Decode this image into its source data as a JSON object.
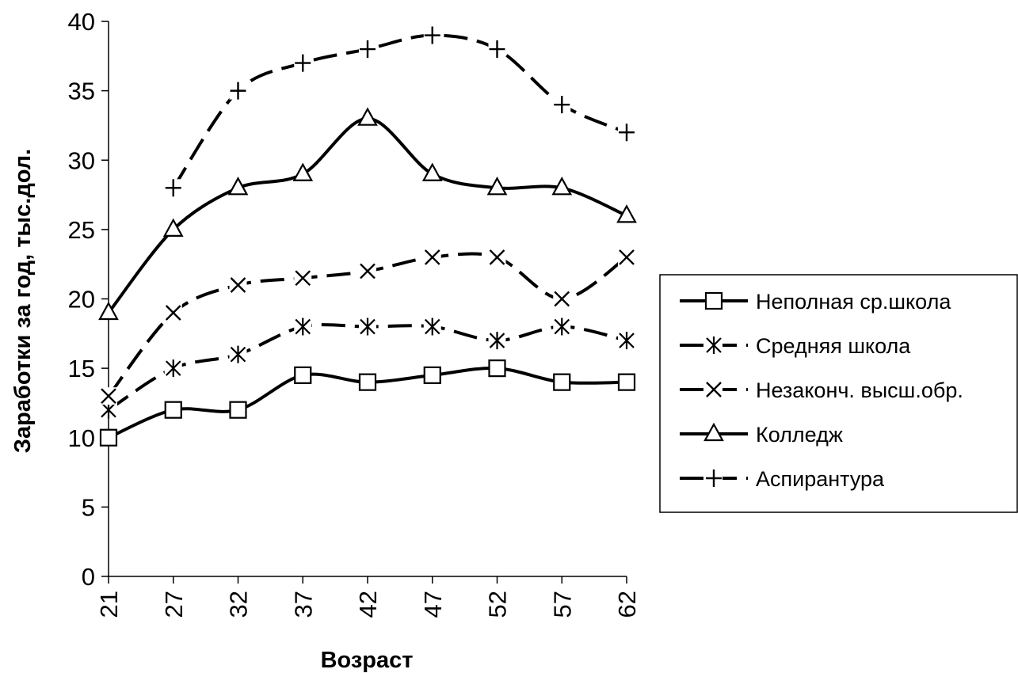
{
  "chart_data": {
    "type": "line",
    "title": "",
    "xlabel": "Возраст",
    "ylabel": "Заработки за год, тыс.дол.",
    "categories": [
      "21",
      "27",
      "32",
      "37",
      "42",
      "47",
      "52",
      "57",
      "62"
    ],
    "ylim": [
      0,
      40
    ],
    "yticks": [
      0,
      5,
      10,
      15,
      20,
      25,
      30,
      35,
      40
    ],
    "grid": false,
    "legend_position": "right",
    "series": [
      {
        "name": "Неполная ср.школа",
        "marker": "square",
        "dashed": false,
        "values": [
          10,
          12,
          12,
          14.5,
          14,
          14.5,
          15,
          14,
          14
        ]
      },
      {
        "name": "Средняя школа",
        "marker": "asterisk",
        "dashed": true,
        "values": [
          12,
          15,
          16,
          18,
          18,
          18,
          17,
          18,
          17
        ]
      },
      {
        "name": "Незаконч. высш.обр.",
        "marker": "x",
        "dashed": true,
        "values": [
          13,
          19,
          21,
          21.5,
          22,
          23,
          23,
          20,
          23
        ]
      },
      {
        "name": "Колледж",
        "marker": "triangle",
        "dashed": false,
        "values": [
          19,
          25,
          28,
          29,
          33,
          29,
          28,
          28,
          26
        ]
      },
      {
        "name": "Аспирантура",
        "marker": "plus",
        "dashed": true,
        "values": [
          null,
          28,
          35,
          37,
          38,
          39,
          38,
          34,
          32
        ]
      }
    ]
  }
}
